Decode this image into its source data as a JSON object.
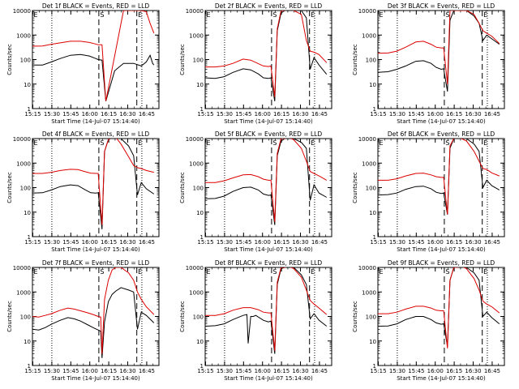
{
  "figure": {
    "xlabel": "Start Time (14-Jul-07 15:14:40)",
    "ylabel": "Counts/sec",
    "x_ticks": [
      "15:15",
      "15:30",
      "15:45",
      "16:00",
      "16:15",
      "16:30",
      "16:45"
    ],
    "y_ticks": [
      "1",
      "10",
      "100",
      "1000",
      "10000"
    ],
    "legend_text": "BLACK = Events, RED = LLD",
    "markers": {
      "S": "S",
      "E": "E"
    },
    "colors": {
      "events": "#000000",
      "lld": "#dd0000",
      "axis": "#000000"
    }
  },
  "chart_data": [
    {
      "type": "line",
      "title": "Det 1f BLACK = Events, RED = LLD",
      "x_unit": "minutes after 15:14:40",
      "xlim": [
        0,
        100
      ],
      "ylim": [
        1,
        10000
      ],
      "yscale": "log",
      "series": [
        {
          "name": "Events",
          "x": [
            0,
            8,
            15,
            22,
            30,
            38,
            45,
            50,
            52,
            55,
            58,
            65,
            72,
            80,
            86,
            90,
            93,
            95,
            96
          ],
          "y": [
            60,
            60,
            80,
            110,
            150,
            160,
            140,
            110,
            100,
            95,
            2,
            35,
            70,
            70,
            55,
            80,
            150,
            70,
            60
          ]
        },
        {
          "name": "LLD",
          "x": [
            0,
            8,
            15,
            22,
            30,
            38,
            45,
            50,
            52,
            55,
            58,
            72,
            80,
            86,
            90,
            93,
            96
          ],
          "y": [
            350,
            360,
            420,
            480,
            560,
            560,
            500,
            430,
            400,
            400,
            2,
            10000,
            10000,
            10000,
            9000,
            3000,
            1200
          ]
        }
      ]
    },
    {
      "type": "line",
      "title": "Det 2f BLACK = Events, RED = LLD",
      "x_unit": "minutes after 15:14:40",
      "xlim": [
        0,
        100
      ],
      "ylim": [
        1,
        10000
      ],
      "yscale": "log",
      "series": [
        {
          "name": "Events",
          "x": [
            0,
            8,
            15,
            22,
            30,
            36,
            42,
            46,
            50,
            52,
            55,
            57,
            60,
            63,
            66,
            70,
            76,
            80,
            83,
            86,
            90,
            96
          ],
          "y": [
            18,
            17,
            20,
            30,
            42,
            38,
            26,
            18,
            17,
            18,
            2,
            1500,
            8000,
            10000,
            10000,
            10000,
            10000,
            5000,
            40,
            120,
            60,
            25
          ]
        },
        {
          "name": "LLD",
          "x": [
            0,
            8,
            15,
            22,
            30,
            36,
            42,
            46,
            50,
            52,
            55,
            57,
            60,
            63,
            66,
            70,
            76,
            80,
            83,
            86,
            90,
            96
          ],
          "y": [
            50,
            50,
            55,
            70,
            105,
            95,
            68,
            55,
            52,
            55,
            3,
            1800,
            10000,
            10000,
            13000,
            10000,
            7000,
            600,
            220,
            200,
            160,
            75
          ]
        }
      ]
    },
    {
      "type": "line",
      "title": "Det 3f BLACK = Events, RED = LLD",
      "x_unit": "minutes after 15:14:40",
      "xlim": [
        0,
        100
      ],
      "ylim": [
        1,
        10000
      ],
      "yscale": "log",
      "series": [
        {
          "name": "Events",
          "x": [
            0,
            8,
            15,
            22,
            30,
            36,
            42,
            46,
            50,
            52,
            55,
            57,
            60,
            63,
            66,
            70,
            76,
            80,
            83,
            86,
            90,
            96
          ],
          "y": [
            30,
            32,
            40,
            55,
            85,
            90,
            70,
            48,
            40,
            42,
            5,
            4000,
            10000,
            10000,
            10000,
            10000,
            6000,
            3000,
            600,
            1000,
            700,
            420
          ]
        },
        {
          "name": "LLD",
          "x": [
            0,
            8,
            15,
            22,
            30,
            36,
            42,
            46,
            50,
            52,
            55,
            57,
            60,
            63,
            66,
            70,
            76,
            80,
            83,
            86,
            90,
            96
          ],
          "y": [
            180,
            185,
            220,
            320,
            520,
            560,
            420,
            320,
            300,
            300,
            10,
            10000,
            10000,
            10000,
            10000,
            10000,
            7000,
            3000,
            1500,
            1200,
            900,
            450
          ]
        }
      ]
    },
    {
      "type": "line",
      "title": "Det 4f BLACK = Events, RED = LLD",
      "x_unit": "minutes after 15:14:40",
      "xlim": [
        0,
        100
      ],
      "ylim": [
        1,
        10000
      ],
      "yscale": "log",
      "series": [
        {
          "name": "Events",
          "x": [
            0,
            8,
            15,
            22,
            30,
            36,
            42,
            46,
            50,
            52,
            55,
            57,
            60,
            63,
            66,
            70,
            76,
            80,
            83,
            86,
            90,
            96
          ],
          "y": [
            60,
            62,
            80,
            110,
            130,
            120,
            80,
            62,
            60,
            62,
            2,
            3000,
            9000,
            11000,
            10000,
            10000,
            5000,
            2000,
            50,
            160,
            90,
            55
          ]
        },
        {
          "name": "LLD",
          "x": [
            0,
            8,
            15,
            22,
            30,
            36,
            42,
            46,
            50,
            52,
            55,
            57,
            60,
            63,
            66,
            70,
            76,
            80,
            83,
            86,
            90,
            96
          ],
          "y": [
            380,
            380,
            420,
            500,
            560,
            540,
            440,
            390,
            380,
            380,
            3,
            3000,
            9000,
            12000,
            11000,
            6000,
            1800,
            800,
            650,
            600,
            500,
            420
          ]
        }
      ]
    },
    {
      "type": "line",
      "title": "Det 5f BLACK = Events, RED = LLD",
      "x_unit": "minutes after 15:14:40",
      "xlim": [
        0,
        100
      ],
      "ylim": [
        1,
        10000
      ],
      "yscale": "log",
      "series": [
        {
          "name": "Events",
          "x": [
            0,
            8,
            15,
            22,
            30,
            36,
            42,
            46,
            50,
            52,
            55,
            57,
            60,
            63,
            66,
            70,
            76,
            80,
            83,
            86,
            90,
            96
          ],
          "y": [
            35,
            36,
            45,
            70,
            100,
            105,
            80,
            55,
            48,
            50,
            3,
            2000,
            8000,
            10000,
            10000,
            10000,
            7000,
            4000,
            30,
            130,
            60,
            40
          ]
        },
        {
          "name": "LLD",
          "x": [
            0,
            8,
            15,
            22,
            30,
            36,
            42,
            46,
            50,
            52,
            55,
            57,
            60,
            63,
            66,
            70,
            76,
            80,
            83,
            86,
            90,
            96
          ],
          "y": [
            160,
            160,
            190,
            250,
            330,
            340,
            280,
            220,
            200,
            200,
            4,
            2500,
            10000,
            10000,
            11000,
            9000,
            4000,
            1200,
            450,
            380,
            300,
            200
          ]
        }
      ]
    },
    {
      "type": "line",
      "title": "Det 6f BLACK = Events, RED = LLD",
      "x_unit": "minutes after 15:14:40",
      "xlim": [
        0,
        100
      ],
      "ylim": [
        1,
        10000
      ],
      "yscale": "log",
      "series": [
        {
          "name": "Events",
          "x": [
            0,
            8,
            15,
            22,
            30,
            36,
            42,
            46,
            50,
            52,
            55,
            57,
            60,
            63,
            66,
            70,
            76,
            80,
            83,
            86,
            90,
            96
          ],
          "y": [
            50,
            52,
            60,
            85,
            110,
            115,
            90,
            65,
            58,
            60,
            8,
            4000,
            10000,
            10000,
            10000,
            10000,
            6000,
            3000,
            100,
            200,
            120,
            80
          ]
        },
        {
          "name": "LLD",
          "x": [
            0,
            8,
            15,
            22,
            30,
            36,
            42,
            46,
            50,
            52,
            55,
            57,
            60,
            63,
            66,
            70,
            76,
            80,
            83,
            86,
            90,
            96
          ],
          "y": [
            200,
            200,
            230,
            300,
            380,
            390,
            330,
            280,
            260,
            260,
            8,
            5000,
            10000,
            11000,
            10000,
            8000,
            3000,
            1200,
            600,
            550,
            400,
            300
          ]
        }
      ]
    },
    {
      "type": "line",
      "title": "Det 7f BLACK = Events, RED = LLD",
      "x_unit": "minutes after 15:14:40",
      "xlim": [
        0,
        100
      ],
      "ylim": [
        1,
        10000
      ],
      "yscale": "log",
      "series": [
        {
          "name": "Events",
          "x": [
            0,
            5,
            10,
            15,
            22,
            28,
            33,
            38,
            44,
            48,
            52,
            54,
            55,
            57,
            60,
            63,
            66,
            70,
            76,
            80,
            83,
            86,
            90,
            96
          ],
          "y": [
            30,
            28,
            35,
            48,
            70,
            90,
            80,
            65,
            45,
            35,
            28,
            25,
            2,
            60,
            400,
            800,
            1100,
            1500,
            1200,
            1000,
            30,
            150,
            110,
            55
          ]
        },
        {
          "name": "LLD",
          "x": [
            0,
            5,
            10,
            15,
            22,
            28,
            33,
            38,
            44,
            48,
            52,
            54,
            55,
            57,
            60,
            63,
            66,
            70,
            76,
            80,
            83,
            86,
            90,
            96
          ],
          "y": [
            100,
            95,
            110,
            130,
            180,
            220,
            200,
            170,
            140,
            120,
            100,
            95,
            3,
            500,
            3000,
            8000,
            10000,
            10000,
            6000,
            3000,
            1000,
            500,
            250,
            120
          ]
        }
      ]
    },
    {
      "type": "line",
      "title": "Det 8f BLACK = Events, RED = LLD",
      "x_unit": "minutes after 15:14:40",
      "xlim": [
        0,
        100
      ],
      "ylim": [
        1,
        10000
      ],
      "yscale": "log",
      "series": [
        {
          "name": "Events",
          "x": [
            0,
            8,
            15,
            22,
            30,
            33,
            34,
            36,
            38,
            40,
            46,
            50,
            52,
            55,
            57,
            60,
            63,
            66,
            70,
            76,
            80,
            83,
            86,
            90,
            96
          ],
          "y": [
            40,
            42,
            50,
            75,
            110,
            120,
            8,
            100,
            100,
            110,
            70,
            60,
            65,
            3,
            2000,
            9000,
            10000,
            10000,
            10000,
            5000,
            2000,
            80,
            130,
            70,
            40
          ]
        },
        {
          "name": "LLD",
          "x": [
            0,
            8,
            15,
            22,
            30,
            36,
            42,
            46,
            50,
            52,
            55,
            57,
            60,
            63,
            66,
            70,
            76,
            80,
            83,
            86,
            90,
            96
          ],
          "y": [
            110,
            110,
            130,
            180,
            230,
            230,
            190,
            150,
            140,
            140,
            4,
            2500,
            10000,
            10000,
            11000,
            9000,
            4000,
            1200,
            450,
            320,
            220,
            120
          ]
        }
      ]
    },
    {
      "type": "line",
      "title": "Det 9f BLACK = Events, RED = LLD",
      "x_unit": "minutes after 15:14:40",
      "xlim": [
        0,
        100
      ],
      "ylim": [
        1,
        10000
      ],
      "yscale": "log",
      "series": [
        {
          "name": "Events",
          "x": [
            0,
            8,
            15,
            22,
            30,
            36,
            42,
            46,
            50,
            52,
            55,
            57,
            60,
            63,
            66,
            70,
            76,
            80,
            83,
            86,
            90,
            96
          ],
          "y": [
            40,
            41,
            50,
            75,
            100,
            100,
            75,
            55,
            48,
            50,
            6,
            3000,
            10000,
            10000,
            10000,
            10000,
            6000,
            3000,
            100,
            150,
            90,
            50
          ]
        },
        {
          "name": "LLD",
          "x": [
            0,
            8,
            15,
            22,
            30,
            36,
            42,
            46,
            50,
            52,
            55,
            57,
            60,
            63,
            66,
            70,
            76,
            80,
            83,
            86,
            90,
            96
          ],
          "y": [
            130,
            130,
            150,
            200,
            260,
            260,
            220,
            180,
            170,
            170,
            5,
            3000,
            10000,
            10000,
            11000,
            9000,
            3500,
            1200,
            420,
            320,
            250,
            140
          ]
        }
      ]
    }
  ]
}
